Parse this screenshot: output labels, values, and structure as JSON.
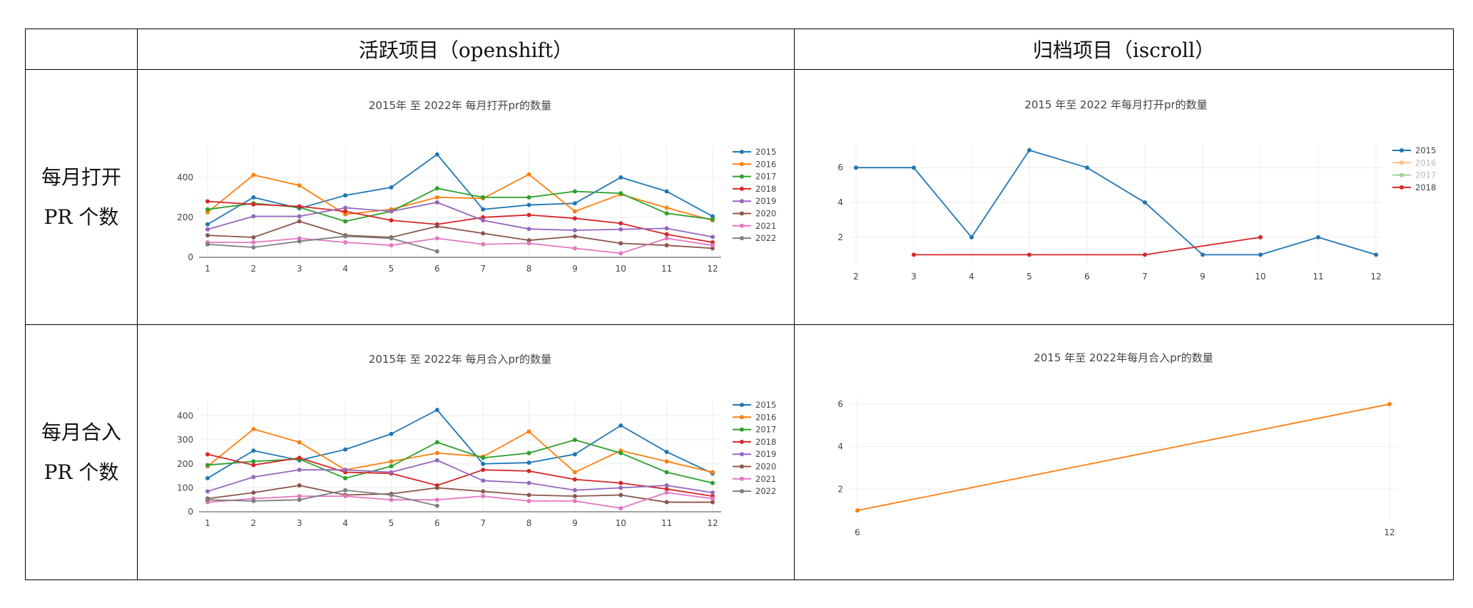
{
  "table": {
    "header_left": "",
    "header_active": "活跃项目（openshift）",
    "header_archived": "归档项目（iscroll）",
    "row1_label_line1": "每月打开",
    "row1_label_line2": "PR 个数",
    "row2_label_line1": "每月合入",
    "row2_label_line2": "PR 个数"
  },
  "chart_data": [
    {
      "id": "openshift_open",
      "type": "line",
      "title": "2015年 至 2022年 每月打开pr的数量",
      "xlabel": "",
      "ylabel": "",
      "x": [
        1,
        2,
        3,
        4,
        5,
        6,
        7,
        8,
        9,
        10,
        11,
        12
      ],
      "xticks": [
        1,
        2,
        3,
        4,
        5,
        6,
        7,
        8,
        9,
        10,
        11,
        12
      ],
      "ylim": [
        0,
        560
      ],
      "yticks": [
        0,
        200,
        400
      ],
      "legend": "right",
      "grid": true,
      "series": [
        {
          "name": "2015",
          "color": "#1f77b4",
          "x": [
            1,
            2,
            3,
            4,
            5,
            6,
            7,
            8,
            9,
            10,
            11,
            12
          ],
          "values": [
            165,
            300,
            245,
            310,
            350,
            515,
            240,
            262,
            270,
            400,
            330,
            205
          ]
        },
        {
          "name": "2016",
          "color": "#ff7f0e",
          "x": [
            1,
            2,
            3,
            4,
            5,
            6,
            7,
            8,
            9,
            10,
            11,
            12
          ],
          "values": [
            225,
            412,
            360,
            215,
            240,
            300,
            295,
            415,
            230,
            315,
            248,
            185
          ]
        },
        {
          "name": "2017",
          "color": "#2ca02c",
          "x": [
            1,
            2,
            3,
            4,
            5,
            6,
            7,
            8,
            9,
            10,
            11,
            12
          ],
          "values": [
            240,
            270,
            250,
            180,
            230,
            345,
            300,
            300,
            330,
            320,
            220,
            190
          ]
        },
        {
          "name": "2018",
          "color": "#d62728",
          "x": [
            1,
            2,
            3,
            4,
            5,
            6,
            7,
            8,
            9,
            10,
            11,
            12
          ],
          "values": [
            280,
            265,
            255,
            230,
            185,
            165,
            200,
            212,
            195,
            170,
            115,
            75
          ]
        },
        {
          "name": "2019",
          "color": "#9467bd",
          "x": [
            1,
            2,
            3,
            4,
            5,
            6,
            7,
            8,
            9,
            10,
            11,
            12
          ],
          "values": [
            140,
            205,
            205,
            248,
            230,
            275,
            185,
            142,
            135,
            140,
            145,
            102
          ]
        },
        {
          "name": "2020",
          "color": "#8c564b",
          "x": [
            1,
            2,
            3,
            4,
            5,
            6,
            7,
            8,
            9,
            10,
            11,
            12
          ],
          "values": [
            110,
            100,
            180,
            110,
            100,
            155,
            120,
            85,
            105,
            70,
            60,
            45
          ]
        },
        {
          "name": "2021",
          "color": "#e377c2",
          "x": [
            1,
            2,
            3,
            4,
            5,
            6,
            7,
            8,
            9,
            10,
            11,
            12
          ],
          "values": [
            75,
            75,
            95,
            75,
            60,
            95,
            65,
            70,
            45,
            20,
            95,
            60
          ]
        },
        {
          "name": "2022",
          "color": "#7f7f7f",
          "x": [
            1,
            2,
            3,
            4,
            5,
            6
          ],
          "values": [
            65,
            50,
            80,
            105,
            95,
            30
          ]
        }
      ]
    },
    {
      "id": "iscroll_open",
      "type": "line",
      "title": "2015 年至 2022 年每月打开pr的数量",
      "xlabel": "",
      "ylabel": "",
      "xticks": [
        2,
        3,
        4,
        5,
        6,
        7,
        9,
        10,
        11,
        12
      ],
      "xcat": true,
      "ylim": [
        0.4,
        7.4
      ],
      "yticks": [
        2,
        4,
        6
      ],
      "legend": "right",
      "grid": true,
      "series": [
        {
          "name": "2015",
          "color": "#1f77b4",
          "x": [
            2,
            3,
            4,
            5,
            6,
            7,
            9,
            10,
            11,
            12
          ],
          "values": [
            6,
            6,
            2,
            7,
            6,
            4,
            1,
            1,
            2,
            1
          ]
        },
        {
          "name": "2016",
          "color": "#ff7f0e",
          "dim": true,
          "x": [],
          "values": []
        },
        {
          "name": "2017",
          "color": "#2ca02c",
          "dim": true,
          "x": [],
          "values": []
        },
        {
          "name": "2018",
          "color": "#d62728",
          "x": [
            3,
            5,
            7,
            10
          ],
          "values": [
            1,
            1,
            1,
            2
          ]
        }
      ]
    },
    {
      "id": "openshift_merged",
      "type": "line",
      "title": "2015年 至 2022年 每月合入pr的数量",
      "xlabel": "",
      "ylabel": "",
      "x": [
        1,
        2,
        3,
        4,
        5,
        6,
        7,
        8,
        9,
        10,
        11,
        12
      ],
      "xticks": [
        1,
        2,
        3,
        4,
        5,
        6,
        7,
        8,
        9,
        10,
        11,
        12
      ],
      "ylim": [
        0,
        470
      ],
      "yticks": [
        0,
        100,
        200,
        300,
        400
      ],
      "legend": "right",
      "grid": true,
      "series": [
        {
          "name": "2015",
          "color": "#1f77b4",
          "x": [
            1,
            2,
            3,
            4,
            5,
            6,
            7,
            8,
            9,
            10,
            11,
            12
          ],
          "values": [
            140,
            255,
            215,
            260,
            325,
            425,
            200,
            205,
            240,
            360,
            250,
            160
          ]
        },
        {
          "name": "2016",
          "color": "#ff7f0e",
          "x": [
            1,
            2,
            3,
            4,
            5,
            6,
            7,
            8,
            9,
            10,
            11,
            12
          ],
          "values": [
            190,
            345,
            290,
            175,
            210,
            245,
            230,
            335,
            165,
            255,
            210,
            165
          ]
        },
        {
          "name": "2017",
          "color": "#2ca02c",
          "x": [
            1,
            2,
            3,
            4,
            5,
            6,
            7,
            8,
            9,
            10,
            11,
            12
          ],
          "values": [
            195,
            210,
            220,
            140,
            190,
            290,
            225,
            245,
            300,
            245,
            165,
            120
          ]
        },
        {
          "name": "2018",
          "color": "#d62728",
          "x": [
            1,
            2,
            3,
            4,
            5,
            6,
            7,
            8,
            9,
            10,
            11,
            12
          ],
          "values": [
            240,
            195,
            225,
            165,
            160,
            110,
            175,
            170,
            135,
            120,
            95,
            65
          ]
        },
        {
          "name": "2019",
          "color": "#9467bd",
          "x": [
            1,
            2,
            3,
            4,
            5,
            6,
            7,
            8,
            9,
            10,
            11,
            12
          ],
          "values": [
            85,
            145,
            175,
            175,
            165,
            215,
            130,
            120,
            90,
            100,
            110,
            80
          ]
        },
        {
          "name": "2020",
          "color": "#8c564b",
          "x": [
            1,
            2,
            3,
            4,
            5,
            6,
            7,
            8,
            9,
            10,
            11,
            12
          ],
          "values": [
            55,
            80,
            110,
            70,
            75,
            100,
            85,
            70,
            65,
            70,
            40,
            40
          ]
        },
        {
          "name": "2021",
          "color": "#e377c2",
          "x": [
            1,
            2,
            3,
            4,
            5,
            6,
            7,
            8,
            9,
            10,
            11,
            12
          ],
          "values": [
            40,
            55,
            65,
            65,
            50,
            50,
            65,
            45,
            45,
            15,
            80,
            55
          ]
        },
        {
          "name": "2022",
          "color": "#7f7f7f",
          "x": [
            1,
            2,
            3,
            4,
            5,
            6
          ],
          "values": [
            50,
            45,
            50,
            90,
            70,
            25
          ]
        }
      ]
    },
    {
      "id": "iscroll_merged",
      "type": "line",
      "title": "2015 年至 2022年每月合入pr的数量",
      "xlabel": "",
      "ylabel": "",
      "xticks": [
        6,
        12
      ],
      "ylim": [
        0.5,
        6.3
      ],
      "yticks": [
        2,
        4,
        6
      ],
      "grid": true,
      "series": [
        {
          "x": [
            6,
            12
          ],
          "values": [
            1,
            6
          ],
          "color": "#ff7f0e"
        }
      ]
    }
  ]
}
